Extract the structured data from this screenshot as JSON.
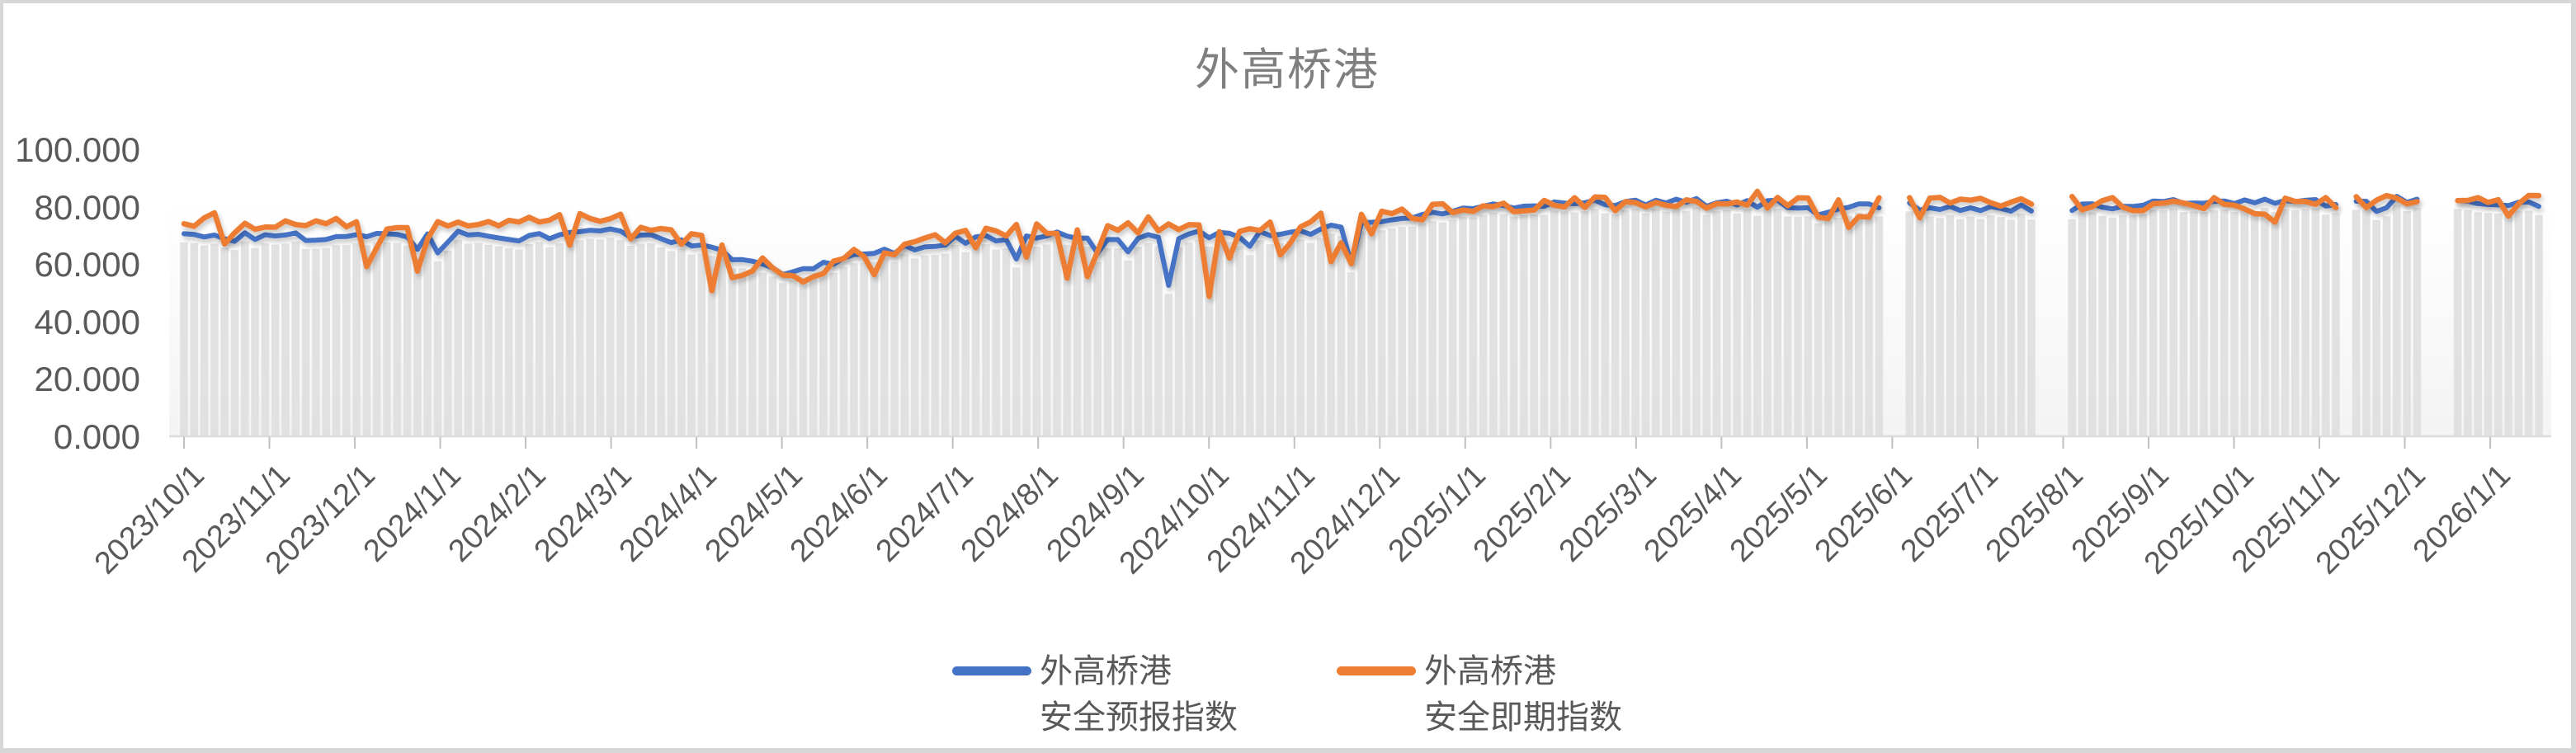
{
  "title": "外高桥港",
  "colors": {
    "forecast_line": "#4472C4",
    "spot_line": "#ED7D31",
    "bars": "#e1e1e1",
    "bar_gap": "#f7f7f7",
    "axis_line": "#d9d9d9",
    "tick": "#bfbfbf",
    "axis_text": "#595959",
    "title_text": "#7f7f7f",
    "frame_bg": "#d7d7d7",
    "chart_bg": "#ffffff"
  },
  "y_axis": {
    "labels": [
      "100.000",
      "80.000",
      "60.000",
      "40.000",
      "20.000",
      "0.000"
    ],
    "values": [
      100,
      80,
      60,
      40,
      20,
      0
    ]
  },
  "x_axis": {
    "labels": [
      "2023/10/1",
      "2023/11/1",
      "2023/12/1",
      "2024/1/1",
      "2024/2/1",
      "2024/3/1",
      "2024/4/1",
      "2024/5/1",
      "2024/6/1",
      "2024/7/1",
      "2024/8/1",
      "2024/9/1",
      "2024/10/1",
      "2024/11/1",
      "2024/12/1",
      "2025/1/1",
      "2025/2/1",
      "2025/3/1",
      "2025/4/1",
      "2025/5/1",
      "2025/6/1",
      "2025/7/1",
      "2025/8/1",
      "2025/9/1",
      "2025/10/1",
      "2025/11/1",
      "2025/12/1",
      "2026/1/1"
    ]
  },
  "legend": [
    {
      "label": "外高桥港\n安全预报指数",
      "color": "#4472C4"
    },
    {
      "label": "外高桥港\n安全即期指数",
      "color": "#ED7D31"
    }
  ],
  "chart_data": {
    "type": "line",
    "title": "外高桥港",
    "xlabel": "",
    "ylabel": "",
    "ylim": [
      0,
      100
    ],
    "y_tick_step": 20,
    "grid": false,
    "legend_position": "bottom",
    "x_monthly": [
      "2023/10/1",
      "2023/11/1",
      "2023/12/1",
      "2024/1/1",
      "2024/2/1",
      "2024/3/1",
      "2024/4/1",
      "2024/5/1",
      "2024/6/1",
      "2024/7/1",
      "2024/8/1",
      "2024/9/1",
      "2024/10/1",
      "2024/11/1",
      "2024/12/1",
      "2025/1/1",
      "2025/2/1",
      "2025/3/1",
      "2025/4/1",
      "2025/5/1",
      "2025/6/1",
      "2025/7/1",
      "2025/8/1",
      "2025/9/1",
      "2025/10/1",
      "2025/11/1",
      "2025/12/1",
      "2026/1/1",
      "2026/1/31"
    ],
    "series": [
      {
        "name": "外高桥港 安全预报指数",
        "color": "#4472C4",
        "monthly_values": [
          70,
          69.5,
          69,
          70,
          69,
          71,
          67,
          56,
          63,
          68,
          69.5,
          69.5,
          70,
          70,
          75,
          79,
          81,
          81.5,
          81,
          80.5,
          80,
          79.5,
          79,
          81,
          81.5,
          81,
          82,
          81.5,
          81
        ]
      },
      {
        "name": "外高桥港 安全即期指数",
        "color": "#ED7D31",
        "monthly_values": [
          74,
          74,
          73.5,
          74,
          74,
          75.5,
          70,
          57,
          63,
          70,
          72,
          71,
          72,
          73,
          76,
          79.5,
          81,
          81,
          81,
          80.5,
          80.5,
          80.5,
          81,
          80.5,
          80.5,
          81,
          82,
          82,
          82
        ]
      }
    ],
    "bars_follow_series": "外高桥港 安全预报指数",
    "data_gaps_month_frac": [
      [
        19.9,
        20.12
      ],
      [
        21.68,
        22.0
      ],
      [
        25.22,
        25.35
      ],
      [
        26.2,
        26.55
      ]
    ],
    "events": [
      {
        "mf": 7.3,
        "series": "spot",
        "delta": -6,
        "width": 0.3
      },
      {
        "mf": 11.5,
        "series": "forecast",
        "delta": -15,
        "width": 0.05
      },
      {
        "mf": 12.02,
        "series": "spot",
        "delta": -17,
        "width": 0.05
      },
      {
        "mf": 13.65,
        "series": "forecast",
        "delta": -10,
        "width": 0.06
      },
      {
        "mf": 19.06,
        "series": "spot",
        "delta": 7,
        "width": 0.06
      },
      {
        "mf": 19.18,
        "series": "spot",
        "delta": -11,
        "width": 0.08
      },
      {
        "mf": 19.18,
        "series": "forecast",
        "delta": -7,
        "width": 0.08
      },
      {
        "mf": 24.3,
        "series": "spot",
        "delta": -11,
        "width": 0.07
      },
      {
        "mf": 25.7,
        "series": "forecast",
        "delta": -6,
        "width": 0.07
      }
    ],
    "noise": {
      "forecast_amp": 1.4,
      "spot_amp": 2.4,
      "spot_dip_prob_early": 0.2,
      "spot_dip_min_early": 4,
      "spot_dip_span_early": 14,
      "spot_dip_prob_late": 0.1,
      "spot_dip_min_late": 2,
      "spot_dip_span_late": 4.5,
      "spot_upspike_prob": 0.08,
      "forecast_dip_prob_early": 0.05,
      "early_late_boundary_mf": 14.2,
      "seed": 42
    },
    "n_points": 233,
    "month_frac_end": 27.57
  }
}
